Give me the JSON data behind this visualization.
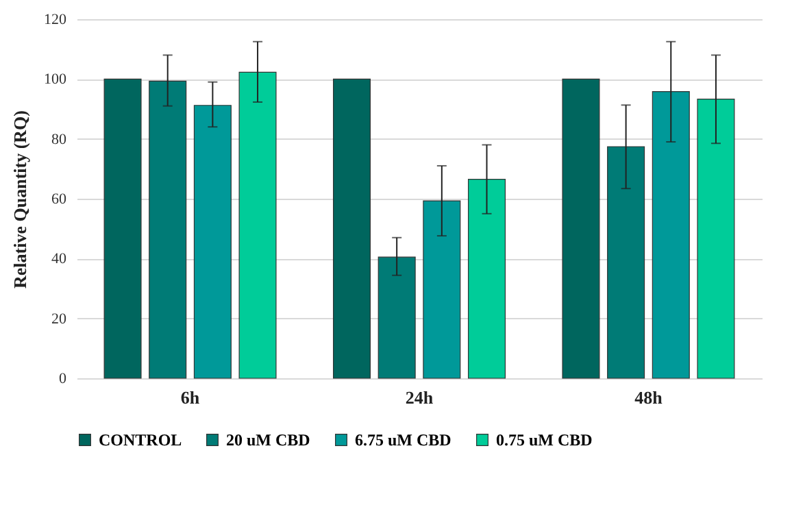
{
  "chart_data": {
    "type": "bar",
    "ylabel": "Relative Quantity  (RQ)",
    "categories": [
      "6h",
      "24h",
      "48h"
    ],
    "series": [
      {
        "name": "CONTROL",
        "color": "#00665e",
        "values": [
          100,
          100,
          100
        ]
      },
      {
        "name": "20 uM CBD",
        "color": "#007b76",
        "values": [
          99.3,
          40.5,
          77.4
        ],
        "errors": [
          [
            91,
            108
          ],
          [
            34.4,
            47
          ],
          [
            63.4,
            91.3
          ]
        ]
      },
      {
        "name": "6.75 uM CBD",
        "color": "#009999",
        "values": [
          91.2,
          59.3,
          95.8
        ],
        "errors": [
          [
            84,
            99
          ],
          [
            47.6,
            71
          ],
          [
            79,
            112.5
          ]
        ]
      },
      {
        "name": "0.75 uM CBD",
        "color": "#00cc99",
        "values": [
          102.3,
          66.5,
          93.3
        ],
        "errors": [
          [
            92.3,
            112.5
          ],
          [
            55,
            78
          ],
          [
            78.5,
            108
          ]
        ]
      }
    ],
    "ylim": [
      0,
      120
    ],
    "yticks": [
      0,
      20,
      40,
      60,
      80,
      100,
      120
    ],
    "grid": "y",
    "legend": "bottom"
  }
}
